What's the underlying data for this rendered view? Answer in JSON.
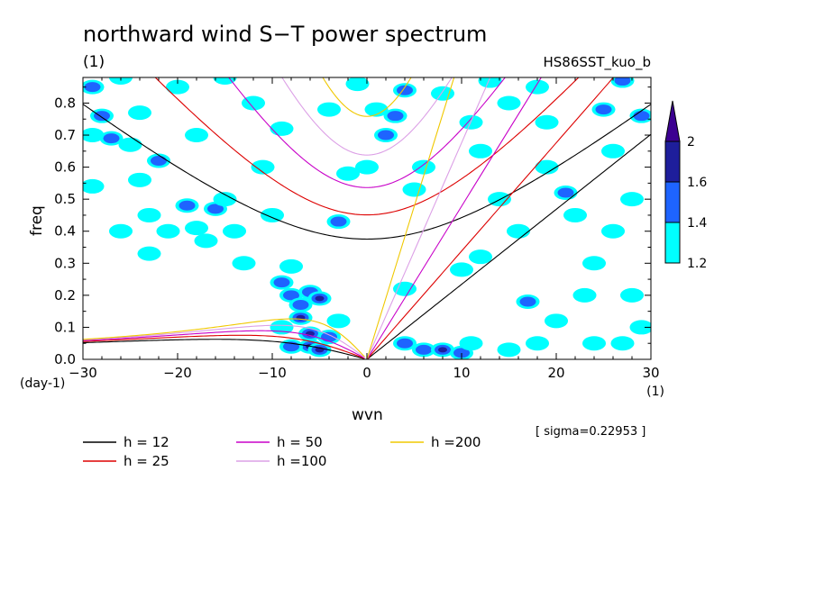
{
  "chart_data": {
    "type": "contour",
    "title": "northward wind S−T power spectrum",
    "unit_label": "(1)",
    "run_name": "HS86SST_kuo_b",
    "xlabel": "wvn",
    "x_unit": "(1)",
    "ylabel": "freq",
    "y_unit": "(day-1)",
    "xlim": [
      -30,
      30
    ],
    "ylim": [
      0,
      0.88
    ],
    "x_ticks": [
      "−30",
      "−20",
      "−10",
      "0",
      "10",
      "20",
      "30"
    ],
    "y_ticks": [
      "0.0",
      "0.1",
      "0.2",
      "0.3",
      "0.4",
      "0.5",
      "0.6",
      "0.7",
      "0.8"
    ],
    "sigma_label": "[ sigma=0.22953 ]",
    "colorbar": {
      "levels": [
        "1.2",
        "1.4",
        "1.6",
        "2"
      ],
      "colors": [
        "#00ffff",
        "#1e64ff",
        "#1e1e9b",
        "#3c0091"
      ]
    },
    "dispersion_curves": [
      {
        "name": "h = 12",
        "h": 12,
        "color": "#000000"
      },
      {
        "name": "h = 25",
        "h": 25,
        "color": "#dd0000"
      },
      {
        "name": "h = 50",
        "h": 50,
        "color": "#c800c8"
      },
      {
        "name": "h =100",
        "h": 100,
        "color": "#dca0e6"
      },
      {
        "name": "h =200",
        "h": 200,
        "color": "#f0c800"
      }
    ],
    "power_blobs": [
      [
        -29,
        0.85,
        2
      ],
      [
        -27,
        0.69,
        2
      ],
      [
        -24,
        0.56,
        1
      ],
      [
        -22,
        0.62,
        2
      ],
      [
        -20,
        0.85,
        1
      ],
      [
        -18,
        0.7,
        1
      ],
      [
        -16,
        0.47,
        2
      ],
      [
        -15,
        0.5,
        1
      ],
      [
        -13,
        0.3,
        1
      ],
      [
        -11,
        0.6,
        1
      ],
      [
        -9,
        0.72,
        1
      ],
      [
        -8,
        0.29,
        1
      ],
      [
        -29,
        0.54,
        1
      ],
      [
        -26,
        0.4,
        1
      ],
      [
        -23,
        0.45,
        1
      ],
      [
        -21,
        0.4,
        1
      ],
      [
        -19,
        0.48,
        2
      ],
      [
        -18,
        0.41,
        1
      ],
      [
        -14,
        0.4,
        1
      ],
      [
        -10,
        0.45,
        1
      ],
      [
        -24,
        0.77,
        1
      ],
      [
        -12,
        0.8,
        1
      ],
      [
        -28,
        0.76,
        2
      ],
      [
        -25,
        0.67,
        1
      ],
      [
        -9,
        0.24,
        2
      ],
      [
        -8,
        0.2,
        2
      ],
      [
        -7,
        0.17,
        2
      ],
      [
        -6,
        0.21,
        2
      ],
      [
        -5,
        0.19,
        3
      ],
      [
        -7,
        0.13,
        3
      ],
      [
        -6,
        0.08,
        3
      ],
      [
        -6,
        0.04,
        3
      ],
      [
        -8,
        0.04,
        2
      ],
      [
        -5,
        0.03,
        3
      ],
      [
        -4,
        0.07,
        2
      ],
      [
        -9,
        0.1,
        1
      ],
      [
        -3,
        0.12,
        1
      ],
      [
        -3,
        0.43,
        2
      ],
      [
        -2,
        0.58,
        1
      ],
      [
        0,
        0.6,
        1
      ],
      [
        1,
        0.78,
        1
      ],
      [
        3,
        0.76,
        2
      ],
      [
        4,
        0.84,
        2
      ],
      [
        6,
        0.6,
        1
      ],
      [
        5,
        0.53,
        1
      ],
      [
        2,
        0.7,
        2
      ],
      [
        4,
        0.22,
        1
      ],
      [
        4,
        0.05,
        2
      ],
      [
        6,
        0.03,
        2
      ],
      [
        8,
        0.03,
        3
      ],
      [
        10,
        0.02,
        2
      ],
      [
        10,
        0.28,
        1
      ],
      [
        12,
        0.32,
        1
      ],
      [
        14,
        0.5,
        1
      ],
      [
        16,
        0.4,
        1
      ],
      [
        17,
        0.18,
        2
      ],
      [
        19,
        0.6,
        1
      ],
      [
        21,
        0.52,
        2
      ],
      [
        23,
        0.2,
        1
      ],
      [
        25,
        0.78,
        2
      ],
      [
        26,
        0.65,
        1
      ],
      [
        27,
        0.87,
        2
      ],
      [
        29,
        0.76,
        2
      ],
      [
        28,
        0.5,
        1
      ],
      [
        13,
        0.87,
        1
      ],
      [
        15,
        0.8,
        1
      ],
      [
        12,
        0.65,
        1
      ],
      [
        18,
        0.85,
        1
      ],
      [
        24,
        0.3,
        1
      ],
      [
        28,
        0.2,
        1
      ],
      [
        20,
        0.12,
        1
      ],
      [
        22,
        0.45,
        1
      ],
      [
        26,
        0.4,
        1
      ],
      [
        11,
        0.05,
        1
      ],
      [
        15,
        0.03,
        1
      ],
      [
        18,
        0.05,
        1
      ],
      [
        24,
        0.05,
        1
      ],
      [
        -26,
        0.88,
        1
      ],
      [
        -15,
        0.88,
        1
      ],
      [
        -29,
        0.7,
        1
      ],
      [
        -23,
        0.33,
        1
      ],
      [
        -17,
        0.37,
        1
      ],
      [
        -4,
        0.78,
        1
      ],
      [
        -1,
        0.86,
        1
      ],
      [
        8,
        0.83,
        1
      ],
      [
        11,
        0.74,
        1
      ],
      [
        19,
        0.74,
        1
      ],
      [
        29,
        0.1,
        1
      ],
      [
        27,
        0.05,
        1
      ]
    ]
  }
}
